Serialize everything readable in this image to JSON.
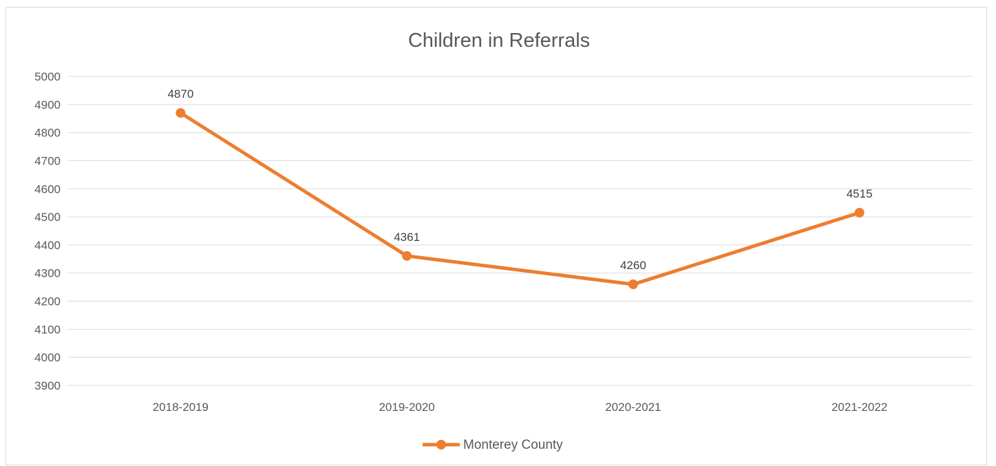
{
  "chart_data": {
    "type": "line",
    "title": "Children in Referrals",
    "xlabel": "",
    "ylabel": "",
    "categories": [
      "2018-2019",
      "2019-2020",
      "2020-2021",
      "2021-2022"
    ],
    "series": [
      {
        "name": "Monterey County",
        "values": [
          4870,
          4361,
          4260,
          4515
        ],
        "color": "#ED7D31"
      }
    ],
    "ylim": [
      3900,
      5000
    ],
    "yticks": [
      3900,
      4000,
      4100,
      4200,
      4300,
      4400,
      4500,
      4600,
      4700,
      4800,
      4900,
      5000
    ],
    "grid": true,
    "gridline_color": "#d9d9d9",
    "data_labels": true,
    "legend_position": "bottom"
  }
}
